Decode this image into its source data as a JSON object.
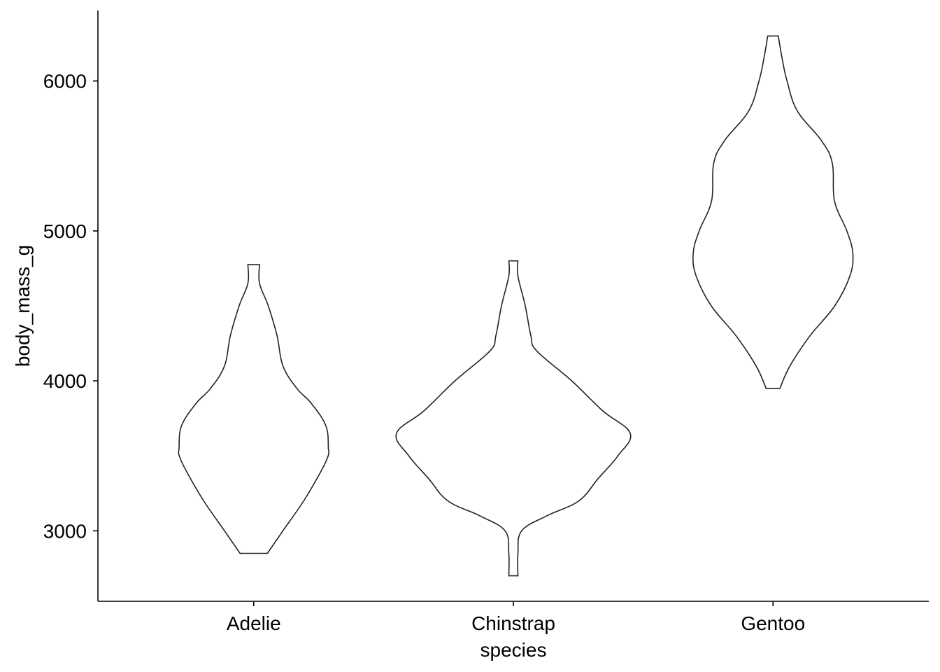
{
  "chart_data": {
    "type": "violin",
    "title": "",
    "xlabel": "species",
    "ylabel": "body_mass_g",
    "categories": [
      "Adelie",
      "Chinstrap",
      "Gentoo"
    ],
    "ylim": [
      2530,
      6470
    ],
    "yticks": [
      3000,
      4000,
      5000,
      6000
    ],
    "ytick_labels": [
      "3000",
      "4000",
      "5000",
      "6000"
    ],
    "grid": false,
    "legend": "none",
    "line_color": "#222222",
    "violins": [
      {
        "category": "Adelie",
        "range": [
          2850,
          4775
        ],
        "profile": [
          [
            2850,
            0.117
          ],
          [
            3000,
            0.25
          ],
          [
            3200,
            0.428
          ],
          [
            3400,
            0.578
          ],
          [
            3500,
            0.637
          ],
          [
            3550,
            0.639
          ],
          [
            3700,
            0.618
          ],
          [
            3850,
            0.493
          ],
          [
            3950,
            0.369
          ],
          [
            4100,
            0.25
          ],
          [
            4300,
            0.2
          ],
          [
            4500,
            0.125
          ],
          [
            4650,
            0.05
          ],
          [
            4775,
            0.05
          ]
        ]
      },
      {
        "category": "Chinstrap",
        "range": [
          2700,
          4800
        ],
        "profile": [
          [
            2700,
            0.039
          ],
          [
            2850,
            0.039
          ],
          [
            3000,
            0.071
          ],
          [
            3100,
            0.286
          ],
          [
            3200,
            0.561
          ],
          [
            3350,
            0.727
          ],
          [
            3500,
            0.895
          ],
          [
            3650,
            1.0
          ],
          [
            3800,
            0.765
          ],
          [
            4000,
            0.5
          ],
          [
            4200,
            0.2
          ],
          [
            4300,
            0.15
          ],
          [
            4500,
            0.102
          ],
          [
            4700,
            0.039
          ],
          [
            4800,
            0.039
          ]
        ]
      },
      {
        "category": "Gentoo",
        "range": [
          3950,
          6300
        ],
        "profile": [
          [
            3950,
            0.059
          ],
          [
            4100,
            0.145
          ],
          [
            4300,
            0.316
          ],
          [
            4500,
            0.528
          ],
          [
            4700,
            0.658
          ],
          [
            4850,
            0.683
          ],
          [
            5000,
            0.632
          ],
          [
            5200,
            0.526
          ],
          [
            5450,
            0.508
          ],
          [
            5600,
            0.417
          ],
          [
            5800,
            0.208
          ],
          [
            6000,
            0.12
          ],
          [
            6150,
            0.078
          ],
          [
            6300,
            0.045
          ]
        ]
      }
    ]
  }
}
